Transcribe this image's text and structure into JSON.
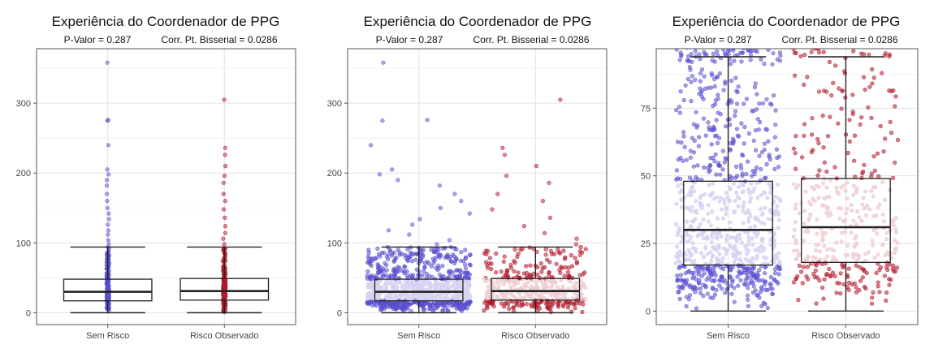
{
  "colors": {
    "sem_risco": "#5a4fcf",
    "risco_observado": "#b2182b",
    "box_line": "#222222",
    "grid": "#e2e2e2"
  },
  "chart_data": [
    {
      "type": "boxplot",
      "variant": "boxplot with overplotted points",
      "title": "Experiência do Coordenador de PPG",
      "subtitle_left": "P-Valor =  0.287",
      "subtitle_right": "Corr. Pt. Bisserial =  0.0286",
      "xlabel": "",
      "ylabel": "",
      "categories": [
        "Sem Risco",
        "Risco Observado"
      ],
      "ylim": [
        -17,
        378
      ],
      "yticks": [
        0,
        100,
        200,
        300
      ],
      "grid": true,
      "points": "aligned",
      "series": [
        {
          "category": "Sem Risco",
          "min": 0,
          "q1": 17,
          "median": 30,
          "q3": 48,
          "max": 94,
          "outliers": [
            98,
            104,
            112,
            118,
            126,
            134,
            142,
            150,
            160,
            170,
            182,
            190,
            198,
            205,
            240,
            275,
            276,
            358
          ]
        },
        {
          "category": "Risco Observado",
          "min": 0,
          "q1": 18,
          "median": 31,
          "q3": 49,
          "max": 94,
          "outliers": [
            98,
            106,
            114,
            124,
            136,
            148,
            160,
            170,
            186,
            196,
            210,
            226,
            236,
            305
          ]
        }
      ]
    },
    {
      "type": "boxplot",
      "variant": "boxplot with jittered points",
      "title": "Experiência do Coordenador de PPG",
      "subtitle_left": "P-Valor =  0.287",
      "subtitle_right": "Corr. Pt. Bisserial =  0.0286",
      "xlabel": "",
      "ylabel": "",
      "categories": [
        "Sem Risco",
        "Risco Observado"
      ],
      "ylim": [
        -17,
        378
      ],
      "yticks": [
        0,
        100,
        200,
        300
      ],
      "grid": true,
      "points": "jittered",
      "series": [
        {
          "category": "Sem Risco",
          "min": 0,
          "q1": 17,
          "median": 30,
          "q3": 48,
          "max": 94,
          "outliers": [
            98,
            104,
            112,
            118,
            126,
            134,
            142,
            150,
            160,
            170,
            182,
            190,
            198,
            205,
            240,
            275,
            276,
            358
          ]
        },
        {
          "category": "Risco Observado",
          "min": 0,
          "q1": 18,
          "median": 31,
          "q3": 49,
          "max": 94,
          "outliers": [
            98,
            106,
            114,
            124,
            136,
            148,
            160,
            170,
            186,
            196,
            210,
            226,
            236,
            305
          ]
        }
      ]
    },
    {
      "type": "boxplot",
      "variant": "boxplot with jittered points, zoomed y axis",
      "title": "Experiência do Coordenador de PPG",
      "subtitle_left": "P-Valor =  0.287",
      "subtitle_right": "Corr. Pt. Bisserial =  0.0286",
      "xlabel": "",
      "ylabel": "",
      "categories": [
        "Sem Risco",
        "Risco Observado"
      ],
      "ylim": [
        -5,
        97
      ],
      "yticks": [
        0,
        25,
        50,
        75
      ],
      "grid": true,
      "points": "jittered",
      "series": [
        {
          "category": "Sem Risco",
          "min": 0,
          "q1": 17,
          "median": 30,
          "q3": 48,
          "max": 94,
          "outliers": []
        },
        {
          "category": "Risco Observado",
          "min": 0,
          "q1": 18,
          "median": 31,
          "q3": 49,
          "max": 94,
          "outliers": []
        }
      ]
    }
  ]
}
